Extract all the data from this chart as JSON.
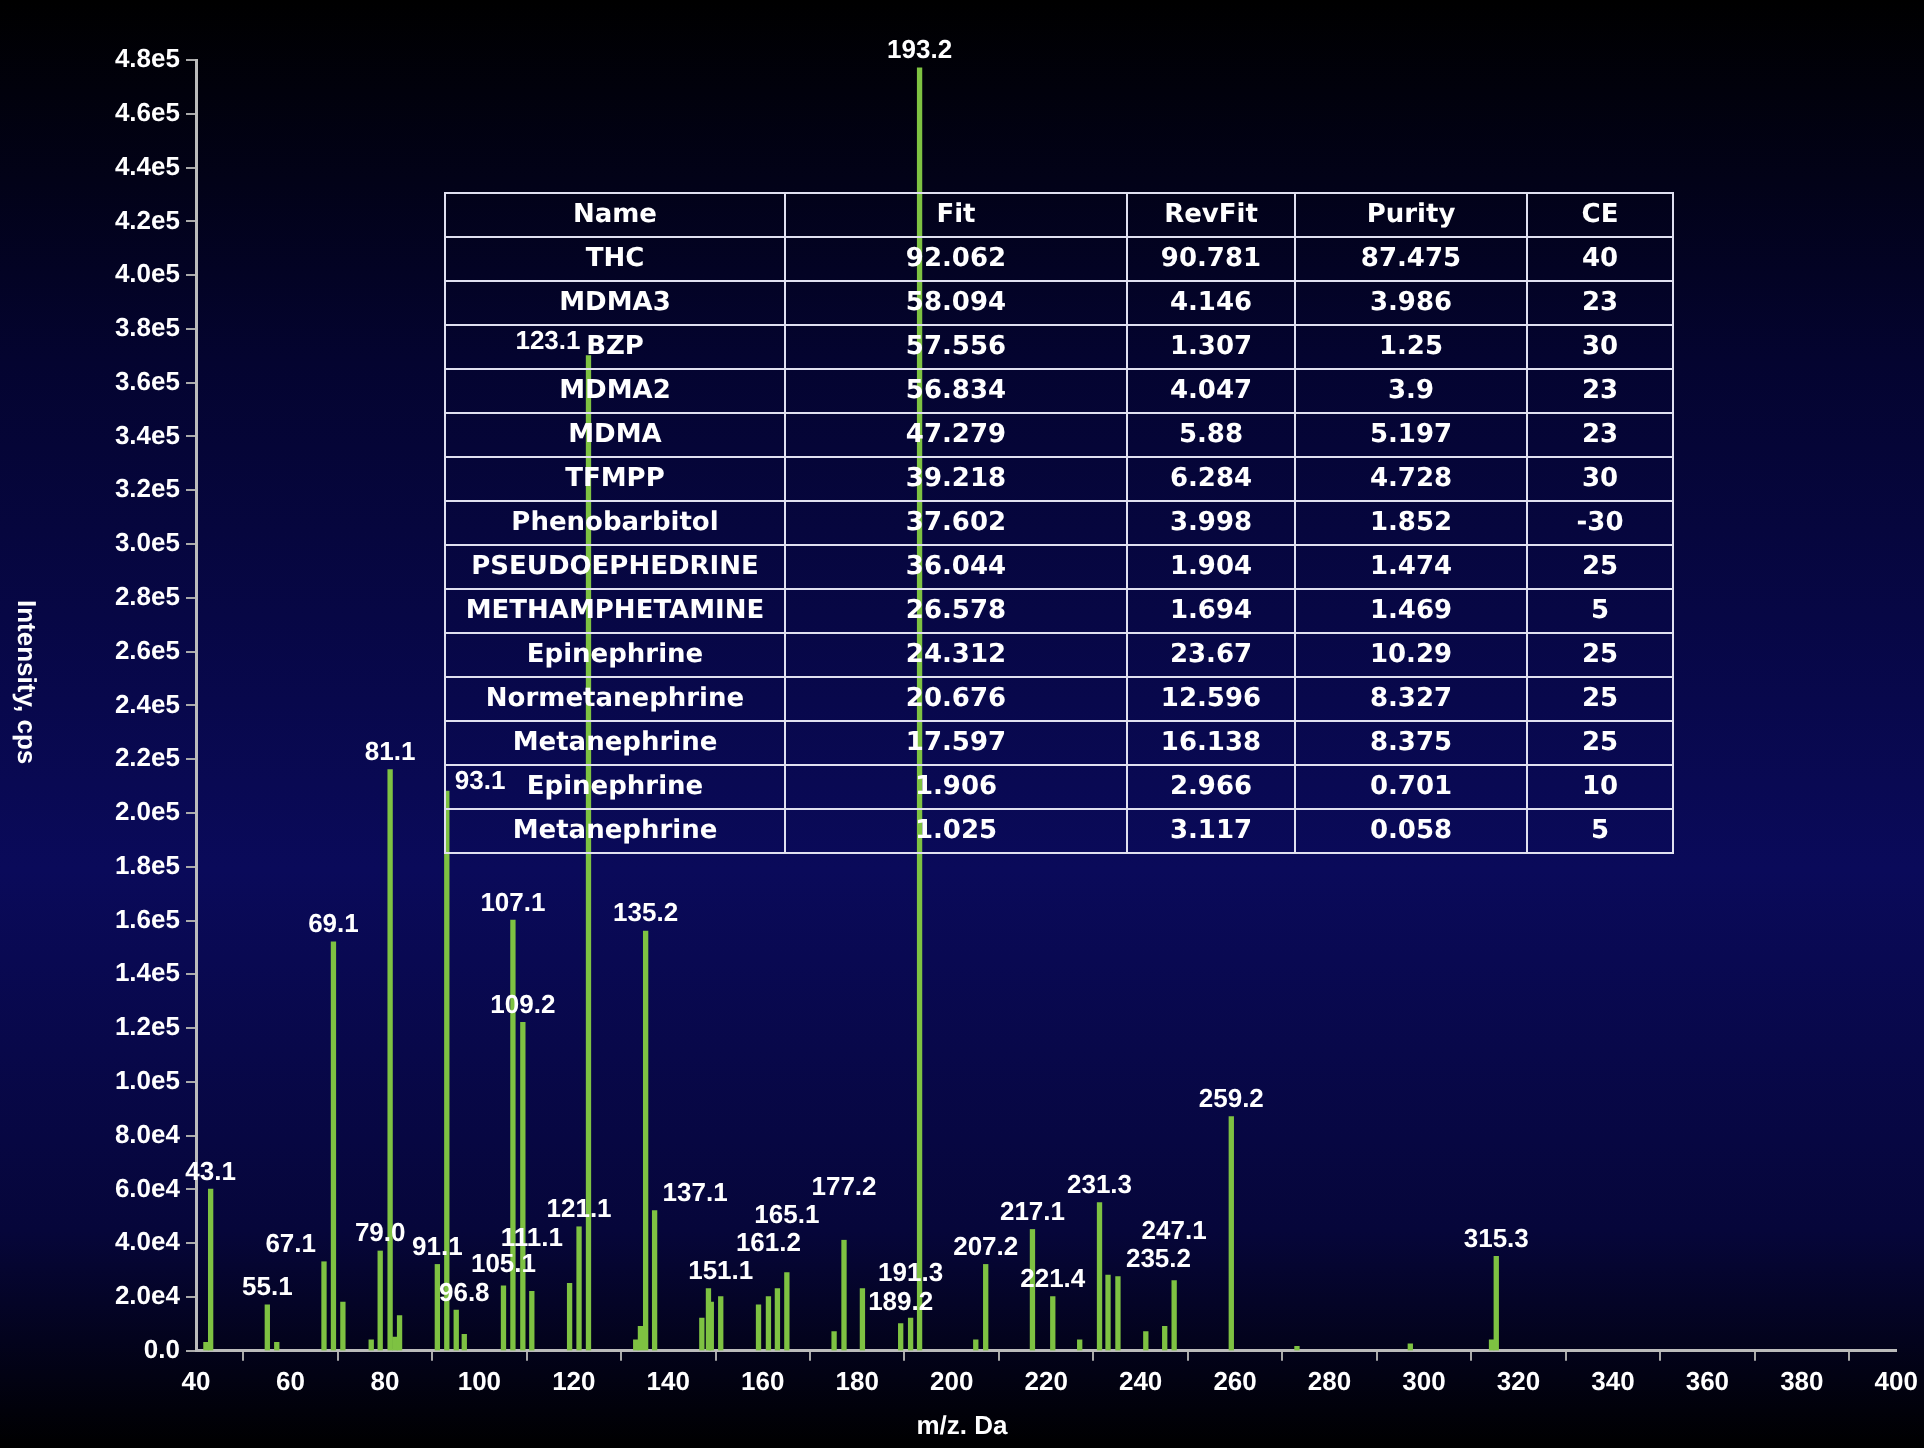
{
  "chart_data": {
    "type": "bar",
    "xlabel": "m/z. Da",
    "ylabel": "Intensity, cps",
    "color": "#7ec242",
    "grid": false,
    "x": [
      42.1,
      43.1,
      55.1,
      57.1,
      67.1,
      69.1,
      71.1,
      77.1,
      79.0,
      81.1,
      82.1,
      83.1,
      91.1,
      93.1,
      95.1,
      96.8,
      105.1,
      107.1,
      109.2,
      111.1,
      119.1,
      121.1,
      123.1,
      133.1,
      134.1,
      135.2,
      137.1,
      147.1,
      148.5,
      149.1,
      151.1,
      159.1,
      161.2,
      163.1,
      165.1,
      175.1,
      177.2,
      181.1,
      189.2,
      191.3,
      193.2,
      205.1,
      207.2,
      217.1,
      221.4,
      227.1,
      231.3,
      233.1,
      235.2,
      241.1,
      245.1,
      247.1,
      259.2,
      273.1,
      297.1,
      314.3,
      315.3
    ],
    "values": [
      3000,
      60000,
      17000,
      3000,
      33000,
      152000,
      18000,
      4000,
      37000,
      216000,
      5000,
      13000,
      32000,
      208000,
      15000,
      6000,
      24000,
      160000,
      122000,
      22000,
      25000,
      46000,
      370000,
      4000,
      9000,
      156000,
      52000,
      12000,
      23000,
      18000,
      20000,
      17000,
      20000,
      23000,
      29000,
      7000,
      41000,
      23000,
      10000,
      12000,
      477000,
      4000,
      32000,
      45000,
      20000,
      4000,
      55000,
      28000,
      27500,
      7000,
      9000,
      26000,
      87000,
      1500,
      2500,
      4000,
      35000
    ],
    "xlim": [
      40,
      400
    ],
    "xticks": [
      40,
      60,
      80,
      100,
      120,
      140,
      160,
      180,
      200,
      220,
      240,
      260,
      280,
      300,
      320,
      340,
      360,
      380,
      400
    ],
    "ylim": [
      0,
      480000
    ],
    "yticks": [
      {
        "value": 0,
        "label": "0.0"
      },
      {
        "value": 20000,
        "label": "2.0e4"
      },
      {
        "value": 40000,
        "label": "4.0e4"
      },
      {
        "value": 60000,
        "label": "6.0e4"
      },
      {
        "value": 80000,
        "label": "8.0e4"
      },
      {
        "value": 100000,
        "label": "1.0e5"
      },
      {
        "value": 120000,
        "label": "1.2e5"
      },
      {
        "value": 140000,
        "label": "1.4e5"
      },
      {
        "value": 160000,
        "label": "1.6e5"
      },
      {
        "value": 180000,
        "label": "1.8e5"
      },
      {
        "value": 200000,
        "label": "2.0e5"
      },
      {
        "value": 220000,
        "label": "2.2e5"
      },
      {
        "value": 240000,
        "label": "2.4e5"
      },
      {
        "value": 260000,
        "label": "2.6e5"
      },
      {
        "value": 280000,
        "label": "2.8e5"
      },
      {
        "value": 300000,
        "label": "3.0e5"
      },
      {
        "value": 320000,
        "label": "3.2e5"
      },
      {
        "value": 340000,
        "label": "3.4e5"
      },
      {
        "value": 360000,
        "label": "3.6e5"
      },
      {
        "value": 380000,
        "label": "3.8e5"
      },
      {
        "value": 400000,
        "label": "4.0e5"
      },
      {
        "value": 420000,
        "label": "4.2e5"
      },
      {
        "value": 440000,
        "label": "4.4e5"
      },
      {
        "value": 460000,
        "label": "4.6e5"
      },
      {
        "value": 480000,
        "label": "4.8e5"
      }
    ],
    "annotations": [
      "Name",
      "Fit",
      "RevFit",
      "Purity",
      "CE",
      "THC",
      "92.062",
      "90.781",
      "87.475",
      "40",
      "MDMA3",
      "58.094",
      "4.146",
      "3.986",
      "23",
      "BZP",
      "57.556",
      "1.307",
      "1.25",
      "30",
      "MDMA2",
      "56.834",
      "4.047",
      "3.9",
      "23",
      "MDMA",
      "47.279",
      "5.88",
      "5.197",
      "23",
      "TFMPP",
      "39.218",
      "6.284",
      "4.728",
      "30",
      "Phenobarbitol",
      "37.602",
      "3.998",
      "1.852",
      "-30",
      "PSEUDOEPHEDRINE",
      "36.044",
      "1.904",
      "1.474",
      "25",
      "METHAMPHETAMINE",
      "26.578",
      "1.694",
      "1.469",
      "5",
      "Epinephrine",
      "24.312",
      "23.67",
      "10.29",
      "25",
      "Normetanephrine",
      "20.676",
      "12.596",
      "8.327",
      "25",
      "Metanephrine",
      "17.597",
      "16.138",
      "8.375",
      "25",
      "Epinephrine",
      "1.906",
      "2.966",
      "0.701",
      "10",
      "Metanephrine",
      "1.025",
      "3.117",
      "0.058",
      "5",
      {
        "text": "43.1",
        "x": 43.1,
        "y": 60000
      },
      {
        "text": "55.1",
        "x": 55.1,
        "y": 17000
      },
      {
        "text": "67.1",
        "x": 67.1,
        "y": 33000
      },
      {
        "text": "69.1",
        "x": 69.1,
        "y": 152000
      },
      {
        "text": "79.0",
        "x": 79.0,
        "y": 37000
      },
      {
        "text": "81.1",
        "x": 81.1,
        "y": 216000
      },
      {
        "text": "91.1",
        "x": 91.1,
        "y": 32000
      },
      {
        "text": "93.1",
        "x": 93.1,
        "y": 208000
      },
      {
        "text": "96.8",
        "x": 96.8,
        "y": 6000
      },
      {
        "text": "105.1",
        "x": 105.1,
        "y": 24000
      },
      {
        "text": "107.1",
        "x": 107.1,
        "y": 160000
      },
      {
        "text": "109.2",
        "x": 109.2,
        "y": 122000
      },
      {
        "text": "111.1",
        "x": 111.1,
        "y": 22000
      },
      {
        "text": "121.1",
        "x": 121.1,
        "y": 46000
      },
      {
        "text": "123.1",
        "x": 123.1,
        "y": 370000
      },
      {
        "text": "135.2",
        "x": 135.2,
        "y": 156000
      },
      {
        "text": "137.1",
        "x": 137.1,
        "y": 52000
      },
      {
        "text": "151.1",
        "x": 151.1,
        "y": 20000
      },
      {
        "text": "161.2",
        "x": 161.2,
        "y": 20000
      },
      {
        "text": "165.1",
        "x": 165.1,
        "y": 29000
      },
      {
        "text": "177.2",
        "x": 177.2,
        "y": 41000
      },
      {
        "text": "189.2",
        "x": 189.2,
        "y": 10000
      },
      {
        "text": "191.3",
        "x": 191.3,
        "y": 12000
      },
      {
        "text": "193.2",
        "x": 193.2,
        "y": 477000
      },
      {
        "text": "207.2",
        "x": 207.2,
        "y": 32000
      },
      {
        "text": "217.1",
        "x": 217.1,
        "y": 45000
      },
      {
        "text": "221.4",
        "x": 221.4,
        "y": 20000
      },
      {
        "text": "231.3",
        "x": 231.3,
        "y": 55000
      },
      {
        "text": "235.2",
        "x": 235.2,
        "y": 27500
      },
      {
        "text": "247.1",
        "x": 247.1,
        "y": 26000
      },
      {
        "text": "259.2",
        "x": 259.2,
        "y": 87000
      },
      {
        "text": "315.3",
        "x": 315.3,
        "y": 35000
      }
    ]
  }
}
